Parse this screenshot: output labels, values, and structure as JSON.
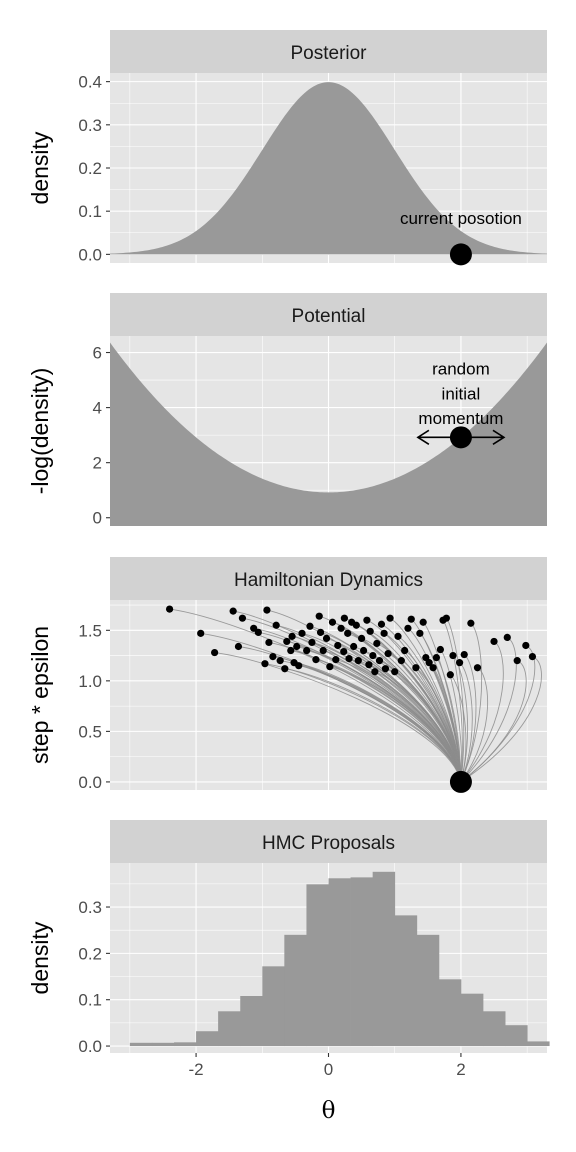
{
  "colors": {
    "panel_bg": "#e5e5e5",
    "strip_bg": "#d2d2d2",
    "fill": "#999999",
    "grid": "#ffffff",
    "tick": "#333333",
    "point": "#000000",
    "trajectory": "#8c8c8c"
  },
  "xlabel": "θ",
  "xlim": [
    -3.3,
    3.3
  ],
  "xticks": [
    -2,
    0,
    2
  ],
  "xtick_labels": [
    "-2",
    "0",
    "2"
  ],
  "chart_data": [
    {
      "type": "area",
      "panel": "Posterior",
      "title": "Posterior",
      "ylabel": "density",
      "ylim": [
        -0.02,
        0.42
      ],
      "yticks": [
        0.0,
        0.1,
        0.2,
        0.3,
        0.4
      ],
      "ytick_labels": [
        "0.0",
        "0.1",
        "0.2",
        "0.3",
        "0.4"
      ],
      "curve": "standard normal density",
      "marker": {
        "x": 2,
        "y": 0
      },
      "annotation": {
        "text": "current posotion",
        "x": 2,
        "y": 0.07
      }
    },
    {
      "type": "area",
      "panel": "Potential",
      "title": "Potential",
      "ylabel": "-log(density)",
      "ylim": [
        -0.3,
        6.6
      ],
      "yticks": [
        0,
        2,
        4,
        6
      ],
      "ytick_labels": [
        "0",
        "2",
        "4",
        "6"
      ],
      "curve": "0.919 + x^2 / 2",
      "marker": {
        "x": 2,
        "y": 2.92
      },
      "momentum_arrow": {
        "from": 1.35,
        "to": 2.65,
        "y": 2.92
      },
      "annotation": {
        "lines": [
          "random",
          "initial",
          "momentum"
        ],
        "x": 2,
        "y": [
          5.2,
          4.3,
          3.4
        ]
      }
    },
    {
      "type": "line",
      "panel": "Hamiltonian Dynamics",
      "title": "Hamiltonian Dynamics",
      "ylabel": "step * epsilon",
      "ylim": [
        -0.08,
        1.8
      ],
      "yticks": [
        0.0,
        0.5,
        1.0,
        1.5
      ],
      "ytick_labels": [
        "0.0",
        "0.5",
        "1.0",
        "1.5"
      ],
      "start": {
        "x": 2,
        "y": 0
      },
      "endpoints": [
        [
          -2.4,
          1.71
        ],
        [
          -1.93,
          1.47
        ],
        [
          -1.72,
          1.28
        ],
        [
          -1.44,
          1.69
        ],
        [
          -1.3,
          1.62
        ],
        [
          -1.36,
          1.34
        ],
        [
          -1.13,
          1.52
        ],
        [
          -1.06,
          1.48
        ],
        [
          -0.96,
          1.17
        ],
        [
          -0.93,
          1.7
        ],
        [
          -0.9,
          1.38
        ],
        [
          -0.84,
          1.24
        ],
        [
          -0.79,
          1.55
        ],
        [
          -0.73,
          1.2
        ],
        [
          -0.66,
          1.12
        ],
        [
          -0.63,
          1.39
        ],
        [
          -0.57,
          1.3
        ],
        [
          -0.55,
          1.44
        ],
        [
          -0.52,
          1.18
        ],
        [
          -0.48,
          1.34
        ],
        [
          -0.45,
          1.15
        ],
        [
          -0.4,
          1.47
        ],
        [
          -0.33,
          1.3
        ],
        [
          -0.28,
          1.54
        ],
        [
          -0.25,
          1.38
        ],
        [
          -0.19,
          1.21
        ],
        [
          -0.14,
          1.64
        ],
        [
          -0.12,
          1.48
        ],
        [
          -0.08,
          1.3
        ],
        [
          -0.03,
          1.42
        ],
        [
          0.02,
          1.14
        ],
        [
          0.06,
          1.58
        ],
        [
          0.11,
          1.21
        ],
        [
          0.14,
          1.35
        ],
        [
          0.19,
          1.52
        ],
        [
          0.23,
          1.29
        ],
        [
          0.24,
          1.62
        ],
        [
          0.29,
          1.47
        ],
        [
          0.31,
          1.22
        ],
        [
          0.35,
          1.58
        ],
        [
          0.38,
          1.34
        ],
        [
          0.42,
          1.55
        ],
        [
          0.45,
          1.2
        ],
        [
          0.5,
          1.42
        ],
        [
          0.53,
          1.3
        ],
        [
          0.58,
          1.6
        ],
        [
          0.61,
          1.16
        ],
        [
          0.63,
          1.49
        ],
        [
          0.67,
          1.25
        ],
        [
          0.7,
          1.09
        ],
        [
          0.73,
          1.37
        ],
        [
          0.77,
          1.2
        ],
        [
          0.8,
          1.56
        ],
        [
          0.84,
          1.47
        ],
        [
          0.86,
          1.12
        ],
        [
          0.9,
          1.27
        ],
        [
          0.93,
          1.62
        ],
        [
          1.0,
          1.09
        ],
        [
          1.05,
          1.44
        ],
        [
          1.1,
          1.2
        ],
        [
          1.15,
          1.3
        ],
        [
          1.2,
          1.52
        ],
        [
          1.25,
          1.61
        ],
        [
          1.32,
          1.13
        ],
        [
          1.38,
          1.47
        ],
        [
          1.43,
          1.58
        ],
        [
          1.47,
          1.23
        ],
        [
          1.52,
          1.18
        ],
        [
          1.58,
          1.13
        ],
        [
          1.63,
          1.23
        ],
        [
          1.69,
          1.31
        ],
        [
          1.73,
          1.6
        ],
        [
          1.78,
          1.62
        ],
        [
          1.84,
          1.06
        ],
        [
          1.88,
          1.25
        ],
        [
          1.98,
          1.18
        ],
        [
          2.05,
          1.26
        ],
        [
          2.15,
          1.57
        ],
        [
          2.25,
          1.13
        ],
        [
          2.5,
          1.39
        ],
        [
          2.85,
          1.2
        ],
        [
          2.98,
          1.35
        ],
        [
          3.08,
          1.24
        ],
        [
          2.7,
          1.43
        ]
      ]
    },
    {
      "type": "bar",
      "panel": "HMC Proposals",
      "title": "HMC Proposals",
      "ylabel": "density",
      "ylim": [
        -0.015,
        0.395
      ],
      "yticks": [
        0.0,
        0.1,
        0.2,
        0.3
      ],
      "ytick_labels": [
        "0.0",
        "0.1",
        "0.2",
        "0.3"
      ],
      "bin_edges": [
        -3.0,
        -2.667,
        -2.333,
        -2.0,
        -1.667,
        -1.333,
        -1.0,
        -0.667,
        -0.333,
        0.0,
        0.333,
        0.667,
        1.0,
        1.333,
        1.667,
        2.0,
        2.333,
        2.667,
        3.0,
        3.333
      ],
      "values": [
        0.007,
        0.007,
        0.008,
        0.032,
        0.075,
        0.108,
        0.172,
        0.24,
        0.349,
        0.362,
        0.364,
        0.376,
        0.282,
        0.24,
        0.144,
        0.113,
        0.075,
        0.045,
        0.01
      ]
    }
  ]
}
